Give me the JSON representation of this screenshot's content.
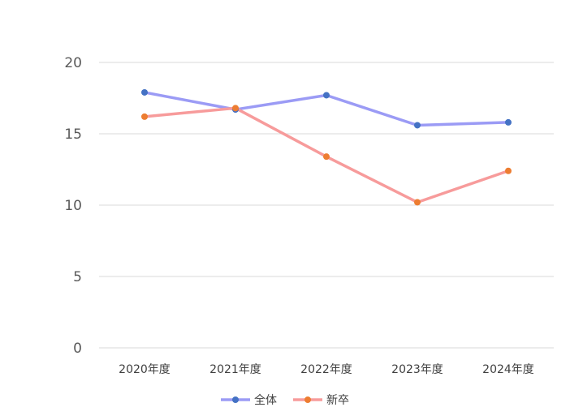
{
  "chart_data": {
    "type": "line",
    "categories": [
      "2020年度",
      "2021年度",
      "2022年度",
      "2023年度",
      "2024年度"
    ],
    "ylim": [
      0,
      20
    ],
    "yticks": [
      0,
      5,
      10,
      15,
      20
    ],
    "grid": true,
    "legend_position": "bottom",
    "series": [
      {
        "name": "全体",
        "values": [
          17.9,
          16.7,
          17.7,
          15.6,
          15.8
        ],
        "line_color": "#9b9bf5",
        "marker_color": "#4472c4"
      },
      {
        "name": "新卒",
        "values": [
          16.2,
          16.8,
          13.4,
          10.2,
          12.4
        ],
        "line_color": "#f79b9b",
        "marker_color": "#ed7d31"
      }
    ]
  }
}
